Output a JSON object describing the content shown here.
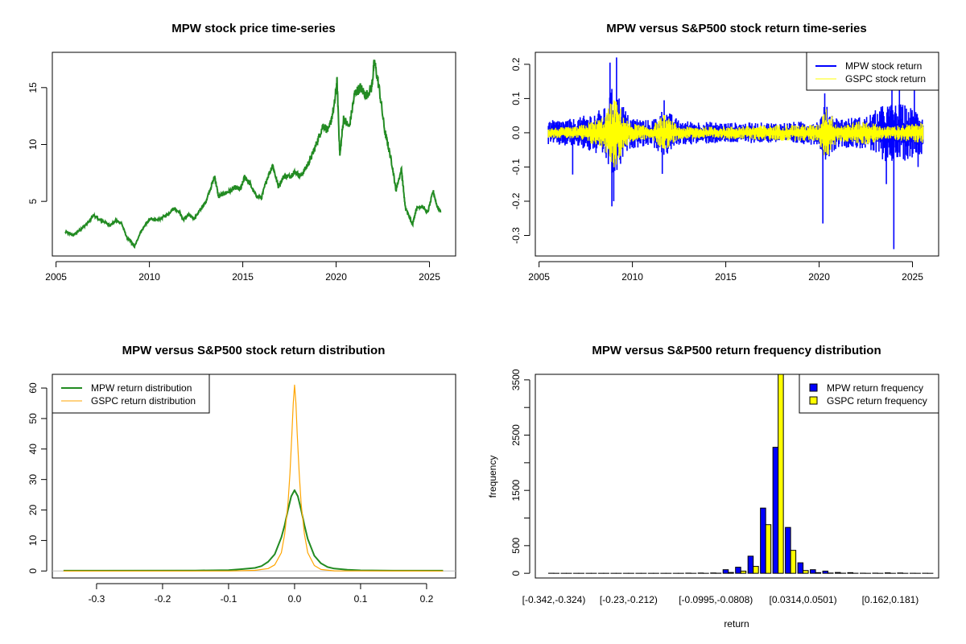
{
  "chart_data": [
    {
      "id": "price",
      "type": "line",
      "title": "MPW stock price time-series",
      "xlabel": "",
      "ylabel": "",
      "xlim": [
        2004.8,
        2026.4
      ],
      "ylim": [
        0.2,
        18.1
      ],
      "x_ticks": [
        "2005",
        "2010",
        "2015",
        "2020",
        "2025"
      ],
      "x_tick_values": [
        2005,
        2010,
        2015,
        2020,
        2025
      ],
      "y_ticks": [
        "5",
        "10",
        "15"
      ],
      "y_tick_values": [
        5,
        10,
        15
      ],
      "grid": false,
      "series": [
        {
          "name": "MPW",
          "color": "#228B22",
          "x": [
            2005.5,
            2005.7,
            2005.9,
            2006.2,
            2006.5,
            2006.8,
            2007.0,
            2007.3,
            2007.6,
            2007.9,
            2008.2,
            2008.5,
            2008.8,
            2009.0,
            2009.2,
            2009.5,
            2009.8,
            2010.1,
            2010.4,
            2010.7,
            2011.0,
            2011.3,
            2011.6,
            2011.8,
            2012.1,
            2012.4,
            2012.7,
            2013.0,
            2013.3,
            2013.5,
            2013.7,
            2014.0,
            2014.3,
            2014.6,
            2014.9,
            2015.1,
            2015.4,
            2015.7,
            2016.0,
            2016.3,
            2016.6,
            2016.9,
            2017.2,
            2017.5,
            2017.8,
            2018.1,
            2018.4,
            2018.7,
            2019.0,
            2019.3,
            2019.6,
            2019.9,
            2020.05,
            2020.2,
            2020.4,
            2020.7,
            2021.0,
            2021.3,
            2021.6,
            2021.9,
            2022.05,
            2022.3,
            2022.6,
            2022.8,
            2023.0,
            2023.2,
            2023.5,
            2023.7,
            2023.9,
            2024.1,
            2024.3,
            2024.6,
            2024.9,
            2025.2,
            2025.4,
            2025.6
          ],
          "y": [
            2.3,
            2.2,
            2.0,
            2.4,
            2.8,
            3.3,
            3.8,
            3.4,
            3.2,
            2.9,
            3.3,
            3.1,
            1.8,
            1.5,
            1.0,
            2.2,
            3.0,
            3.5,
            3.3,
            3.6,
            3.9,
            4.4,
            4.1,
            3.4,
            3.8,
            3.5,
            4.2,
            4.9,
            6.3,
            7.2,
            5.4,
            5.7,
            5.9,
            6.2,
            6.1,
            7.2,
            6.5,
            5.5,
            5.3,
            7.0,
            8.2,
            6.3,
            7.2,
            7.2,
            7.6,
            7.2,
            8.0,
            9.0,
            10.3,
            11.7,
            11.2,
            13.4,
            15.5,
            9.0,
            12.3,
            11.5,
            14.5,
            15.0,
            14.3,
            15.0,
            17.3,
            15.0,
            11.2,
            9.8,
            8.2,
            6.0,
            7.8,
            4.5,
            3.7,
            3.0,
            4.4,
            4.6,
            4.0,
            5.9,
            4.6,
            4.1
          ]
        }
      ]
    },
    {
      "id": "returns",
      "type": "line",
      "title": "MPW versus S&P500 stock return time-series",
      "xlabel": "",
      "ylabel": "",
      "xlim": [
        2004.8,
        2026.4
      ],
      "ylim": [
        -0.36,
        0.235
      ],
      "x_ticks": [
        "2005",
        "2010",
        "2015",
        "2020",
        "2025"
      ],
      "x_tick_values": [
        2005,
        2010,
        2015,
        2020,
        2025
      ],
      "y_ticks": [
        "-0.3",
        "-0.2",
        "-0.1",
        "0.0",
        "0.1",
        "0.2"
      ],
      "y_tick_values": [
        -0.3,
        -0.2,
        -0.1,
        0.0,
        0.1,
        0.2
      ],
      "grid": false,
      "legend": "top-right",
      "series": [
        {
          "name": "MPW stock return",
          "color": "#0000FF",
          "spikes": [
            [
              2006.8,
              -0.122
            ],
            [
              2008.8,
              0.205
            ],
            [
              2008.9,
              -0.215
            ],
            [
              2009.15,
              0.22
            ],
            [
              2009.0,
              -0.2
            ],
            [
              2011.6,
              -0.12
            ],
            [
              2011.7,
              0.095
            ],
            [
              2020.2,
              -0.265
            ],
            [
              2020.3,
              0.115
            ],
            [
              2023.6,
              -0.15
            ],
            [
              2023.9,
              0.13
            ],
            [
              2024.0,
              -0.34
            ],
            [
              2024.3,
              0.13
            ],
            [
              2025.1,
              0.13
            ],
            [
              2025.3,
              -0.1
            ]
          ],
          "envelope_x": [
            2005.5,
            2007.0,
            2008.5,
            2009.0,
            2009.8,
            2011.0,
            2011.7,
            2012.5,
            2015.0,
            2018.0,
            2020.0,
            2020.3,
            2021.0,
            2022.5,
            2023.5,
            2024.5,
            2025.6
          ],
          "envelope": [
            0.03,
            0.035,
            0.06,
            0.12,
            0.04,
            0.03,
            0.06,
            0.03,
            0.025,
            0.025,
            0.03,
            0.07,
            0.035,
            0.04,
            0.07,
            0.07,
            0.05
          ]
        },
        {
          "name": "GSPC stock return",
          "color": "#FFFF00",
          "envelope_x": [
            2005.5,
            2007.0,
            2008.5,
            2009.0,
            2009.8,
            2011.0,
            2011.7,
            2012.5,
            2015.0,
            2018.0,
            2020.0,
            2020.3,
            2021.0,
            2022.5,
            2023.5,
            2024.5,
            2025.6
          ],
          "envelope": [
            0.012,
            0.015,
            0.04,
            0.09,
            0.025,
            0.015,
            0.045,
            0.015,
            0.015,
            0.02,
            0.02,
            0.07,
            0.02,
            0.03,
            0.015,
            0.02,
            0.025
          ]
        }
      ]
    },
    {
      "id": "density",
      "type": "line",
      "title": "MPW versus S&P500 stock return distribution",
      "xlabel": "",
      "ylabel": "",
      "xlim": [
        -0.367,
        0.244
      ],
      "ylim": [
        -2.3,
        64.5
      ],
      "x_ticks": [
        "-0.3",
        "-0.2",
        "-0.1",
        "0.0",
        "0.1",
        "0.2"
      ],
      "x_tick_values": [
        -0.3,
        -0.2,
        -0.1,
        0.0,
        0.1,
        0.2
      ],
      "y_ticks": [
        "0",
        "10",
        "20",
        "30",
        "40",
        "50",
        "60"
      ],
      "y_tick_values": [
        0,
        10,
        20,
        30,
        40,
        50,
        60
      ],
      "grid": false,
      "legend": "top-left",
      "series": [
        {
          "name": "MPW return distribution",
          "color": "#228B22",
          "x": [
            -0.35,
            -0.15,
            -0.1,
            -0.08,
            -0.06,
            -0.05,
            -0.04,
            -0.03,
            -0.02,
            -0.015,
            -0.01,
            -0.005,
            0.0,
            0.005,
            0.01,
            0.015,
            0.02,
            0.03,
            0.04,
            0.05,
            0.06,
            0.08,
            0.1,
            0.15,
            0.225
          ],
          "y": [
            0.1,
            0.15,
            0.3,
            0.6,
            1.0,
            1.6,
            3.0,
            5.5,
            11.0,
            15.0,
            20.0,
            24.5,
            26.5,
            24.5,
            20.0,
            15.0,
            10.5,
            5.0,
            2.5,
            1.3,
            0.8,
            0.4,
            0.2,
            0.1,
            0.1
          ]
        },
        {
          "name": "GSPC return distribution",
          "color": "#FFA500",
          "x": [
            -0.35,
            -0.1,
            -0.06,
            -0.04,
            -0.03,
            -0.02,
            -0.015,
            -0.01,
            -0.007,
            -0.004,
            -0.002,
            0.0,
            0.002,
            0.004,
            0.007,
            0.01,
            0.015,
            0.02,
            0.03,
            0.04,
            0.06,
            0.225
          ],
          "y": [
            0.0,
            0.0,
            0.2,
            0.8,
            2.0,
            6.0,
            12.0,
            22.0,
            32.0,
            45.0,
            55.0,
            61.0,
            55.0,
            45.0,
            32.0,
            22.0,
            12.0,
            6.0,
            1.8,
            0.5,
            0.05,
            0.0
          ]
        }
      ],
      "baseline": {
        "y": 0,
        "color": "#BEBEBE"
      }
    },
    {
      "id": "histogram",
      "type": "bar",
      "title": "MPW versus S&P500 return frequency distribution",
      "xlabel": "return",
      "ylabel": "frequency",
      "ylim": [
        -85,
        3600
      ],
      "y_ticks": [
        "0",
        "500",
        "1500",
        "2500",
        "3500"
      ],
      "y_tick_values": [
        0,
        500,
        1000,
        1500,
        2000,
        2500,
        3000,
        3500
      ],
      "y_tick_labels_shown": [
        "0",
        "500",
        "",
        "1500",
        "",
        "2500",
        "",
        "3500"
      ],
      "x_tick_labels": [
        "[-0.342,-0.324)",
        "[-0.23,-0.212)",
        "[-0.0995,-0.0808)",
        "[0.0314,0.0501)",
        "[0.162,0.181)"
      ],
      "x_tick_label_bins": [
        0,
        6,
        13,
        20,
        27
      ],
      "bin_count": 31,
      "legend": "top-right",
      "series": [
        {
          "name": "MPW return frequency",
          "color": "#0000FF",
          "values": [
            1,
            0,
            0,
            0,
            0,
            0,
            0,
            0,
            0,
            0,
            0,
            3,
            5,
            6,
            65,
            110,
            310,
            1180,
            2280,
            830,
            190,
            65,
            40,
            15,
            12,
            2,
            3,
            8,
            6,
            1,
            1
          ]
        },
        {
          "name": "GSPC return frequency",
          "color": "#FFFF00",
          "values": [
            0,
            0,
            0,
            0,
            0,
            0,
            0,
            0,
            0,
            0,
            0,
            0,
            0,
            2,
            15,
            40,
            125,
            880,
            3800,
            415,
            50,
            12,
            5,
            2,
            1,
            0,
            0,
            0,
            0,
            0,
            0
          ]
        }
      ]
    }
  ]
}
